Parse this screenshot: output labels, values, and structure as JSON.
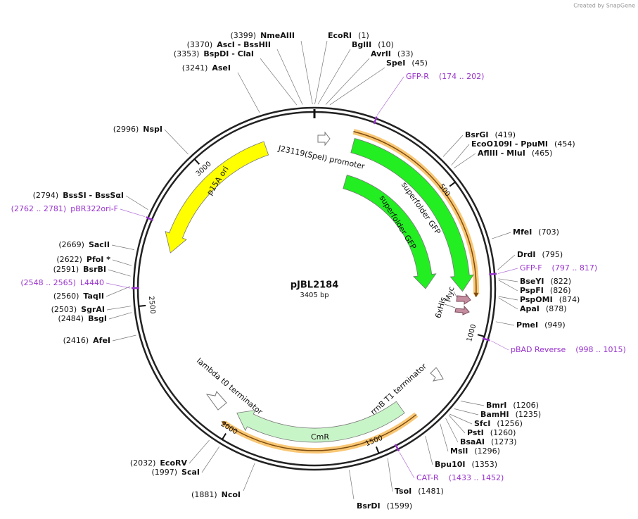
{
  "header": {
    "credit": "Created by SnapGene"
  },
  "plasmid": {
    "name": "pJBL2184",
    "size": "3405 bp"
  },
  "enzymes": [
    {
      "name": "NmeAIII",
      "position": "(3399)"
    },
    {
      "name": "AscI - BssHII",
      "position": "(3370)"
    },
    {
      "name": "BspDI - ClaI",
      "position": "(3353)"
    },
    {
      "name": "AseI",
      "position": "(3241)"
    },
    {
      "name": "EcoRI",
      "position": "(1)"
    },
    {
      "name": "BglII",
      "position": "(10)"
    },
    {
      "name": "AvrII",
      "position": "(33)"
    },
    {
      "name": "SpeI",
      "position": "(45)"
    },
    {
      "name": "BsrGI",
      "position": "(419)"
    },
    {
      "name": "EcoO109I - PpuMI",
      "position": "(454)"
    },
    {
      "name": "AflIII - MluI",
      "position": "(465)"
    },
    {
      "name": "MfeI",
      "position": "(703)"
    },
    {
      "name": "DrdI",
      "position": "(795)"
    },
    {
      "name": "BseYI",
      "position": "(822)"
    },
    {
      "name": "PspFI",
      "position": "(826)"
    },
    {
      "name": "PspOMI",
      "position": "(874)"
    },
    {
      "name": "ApaI",
      "position": "(878)"
    },
    {
      "name": "PmeI",
      "position": "(949)"
    },
    {
      "name": "BmrI",
      "position": "(1206)"
    },
    {
      "name": "BamHI",
      "position": "(1235)"
    },
    {
      "name": "SfcI",
      "position": "(1256)"
    },
    {
      "name": "PstI",
      "position": "(1260)"
    },
    {
      "name": "BsaAI",
      "position": "(1273)"
    },
    {
      "name": "MslI",
      "position": "(1296)"
    },
    {
      "name": "Bpu10I",
      "position": "(1353)"
    },
    {
      "name": "TsoI",
      "position": "(1481)"
    },
    {
      "name": "BsrDI",
      "position": "(1599)"
    },
    {
      "name": "NcoI",
      "position": "(1881)"
    },
    {
      "name": "ScaI",
      "position": "(1997)"
    },
    {
      "name": "EcoRV",
      "position": "(2032)"
    },
    {
      "name": "AfeI",
      "position": "(2416)"
    },
    {
      "name": "BsgI",
      "position": "(2484)"
    },
    {
      "name": "SgrAI",
      "position": "(2503)"
    },
    {
      "name": "TaqII",
      "position": "(2560)"
    },
    {
      "name": "BsrBI",
      "position": "(2591)"
    },
    {
      "name": "PfoI *",
      "position": "(2622)"
    },
    {
      "name": "SacII",
      "position": "(2669)"
    },
    {
      "name": "BssSI - BssSαI",
      "position": "(2794)"
    },
    {
      "name": "NspI",
      "position": "(2996)"
    }
  ],
  "primers": [
    {
      "name": "GFP-R",
      "range": "(174 .. 202)"
    },
    {
      "name": "GFP-F",
      "range": "(797 .. 817)"
    },
    {
      "name": "pBAD Reverse",
      "range": "(998 .. 1015)"
    },
    {
      "name": "CAT-R",
      "range": "(1433 .. 1452)"
    },
    {
      "name": "pBR322ori-F",
      "range": "(2762 .. 2781)"
    },
    {
      "name": "L4440",
      "range": "(2548 .. 2565)"
    }
  ],
  "features": [
    "J23119(SpeI) promoter",
    "superfolder GFP",
    "superfolder GFP",
    "6xHis",
    "Myc",
    "rrnB T1 terminator",
    "CmR",
    "lambda t0 terminator",
    "p15A ori"
  ],
  "ticks": [
    500,
    1000,
    1500,
    2000,
    2500,
    3000
  ]
}
